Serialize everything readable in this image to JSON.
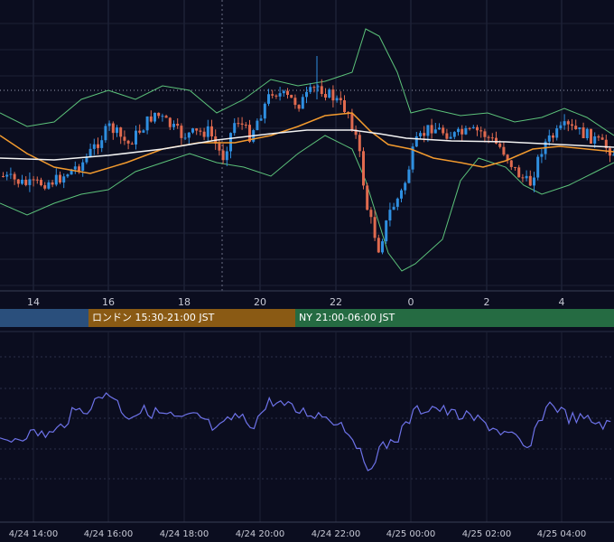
{
  "chart_data": [
    {
      "type": "candlestick",
      "indicators": [
        "bollinger-bands",
        "moving-average-orange",
        "moving-average-white"
      ],
      "x_tick_labels": [
        "14",
        "16",
        "18",
        "20",
        "22",
        "0",
        "2",
        "4"
      ],
      "grid": true,
      "colors": {
        "up": "#2f8fe0",
        "down": "#e06a4f",
        "ma_fast": "#f29a2e",
        "ma_slow": "#f2f2f2",
        "band": "#5cc27a"
      }
    },
    {
      "type": "line",
      "x_tick_labels": [
        "4/24 14:00",
        "4/24 16:00",
        "4/24 18:00",
        "4/24 20:00",
        "4/24 22:00",
        "4/25 00:00",
        "4/25 02:00",
        "4/25 04:00"
      ],
      "grid": true,
      "colors": {
        "line": "#6d72e8"
      }
    }
  ],
  "sessions": {
    "asia": {
      "label": "",
      "color": "#2a4f7c"
    },
    "london": {
      "label": "ロンドン 15:30-21:00 JST",
      "color": "#8a5a14"
    },
    "ny": {
      "label": "NY 21:00-06:00 JST",
      "color": "#256b42"
    }
  }
}
